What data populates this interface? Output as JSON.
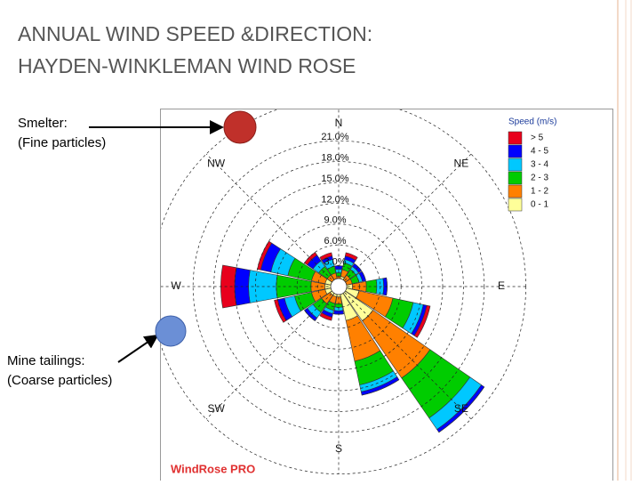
{
  "slide": {
    "title_lines": [
      "ANNUAL WIND SPEED &DIRECTION:",
      "HAYDEN-WINKLEMAN WIND ROSE"
    ],
    "annotations": [
      {
        "lines": [
          "Smelter:",
          "(Fine particles)"
        ]
      },
      {
        "lines": [
          "Mine tailings:",
          "(Coarse particles)"
        ]
      }
    ]
  },
  "chart_data": {
    "type": "windrose",
    "footer": "WindRose PRO",
    "legend_title": "Speed (m/s)",
    "categories": [
      "N",
      null,
      "NE",
      null,
      "E",
      null,
      "SE",
      null,
      "S",
      null,
      "SW",
      null,
      "W",
      null,
      "NW",
      null
    ],
    "rlim": [
      0,
      27
    ],
    "rticks": [
      {
        "value": 3,
        "label": "3.0%"
      },
      {
        "value": 6,
        "label": "6.0%"
      },
      {
        "value": 9,
        "label": "9.0%"
      },
      {
        "value": 12,
        "label": "12.0%"
      },
      {
        "value": 15,
        "label": "15.0%"
      },
      {
        "value": 18,
        "label": "18.0%"
      },
      {
        "value": 21,
        "label": "21.0%"
      }
    ],
    "series": [
      {
        "name": "> 5",
        "color": "#e8001c",
        "values": [
          0,
          0.5,
          0,
          0,
          0,
          0.5,
          0,
          0,
          0,
          0.5,
          0,
          0.5,
          2,
          0.5,
          0.5,
          0.5
        ]
      },
      {
        "name": "4 - 5",
        "color": "#0000ff",
        "values": [
          0.5,
          0.5,
          0.5,
          0.5,
          0.5,
          0.5,
          0.5,
          0.5,
          0.5,
          0.5,
          0.5,
          1,
          2,
          1.5,
          1,
          0.5
        ]
      },
      {
        "name": "3 - 4",
        "color": "#00c8ff",
        "values": [
          0.5,
          0.5,
          0.5,
          0.5,
          1,
          1.5,
          2,
          1,
          0.5,
          0.5,
          1,
          1.5,
          4,
          2.5,
          1,
          1
        ]
      },
      {
        "name": "2 - 3",
        "color": "#00cc00",
        "values": [
          0.5,
          1,
          1,
          1,
          1.5,
          3,
          7,
          3.5,
          0.5,
          1,
          1.5,
          2.5,
          5,
          3.5,
          1.5,
          1
        ]
      },
      {
        "name": "1 - 2",
        "color": "#ff8000",
        "values": [
          0.5,
          1,
          1,
          1,
          2,
          5,
          10,
          6,
          1,
          1,
          1.5,
          2,
          2,
          2,
          1,
          1
        ]
      },
      {
        "name": "0 - 1",
        "color": "#ffff99",
        "values": [
          1,
          1.5,
          1,
          1,
          2,
          3,
          6,
          5,
          1.5,
          1.5,
          1.5,
          2,
          2,
          2,
          1,
          1
        ]
      }
    ]
  }
}
